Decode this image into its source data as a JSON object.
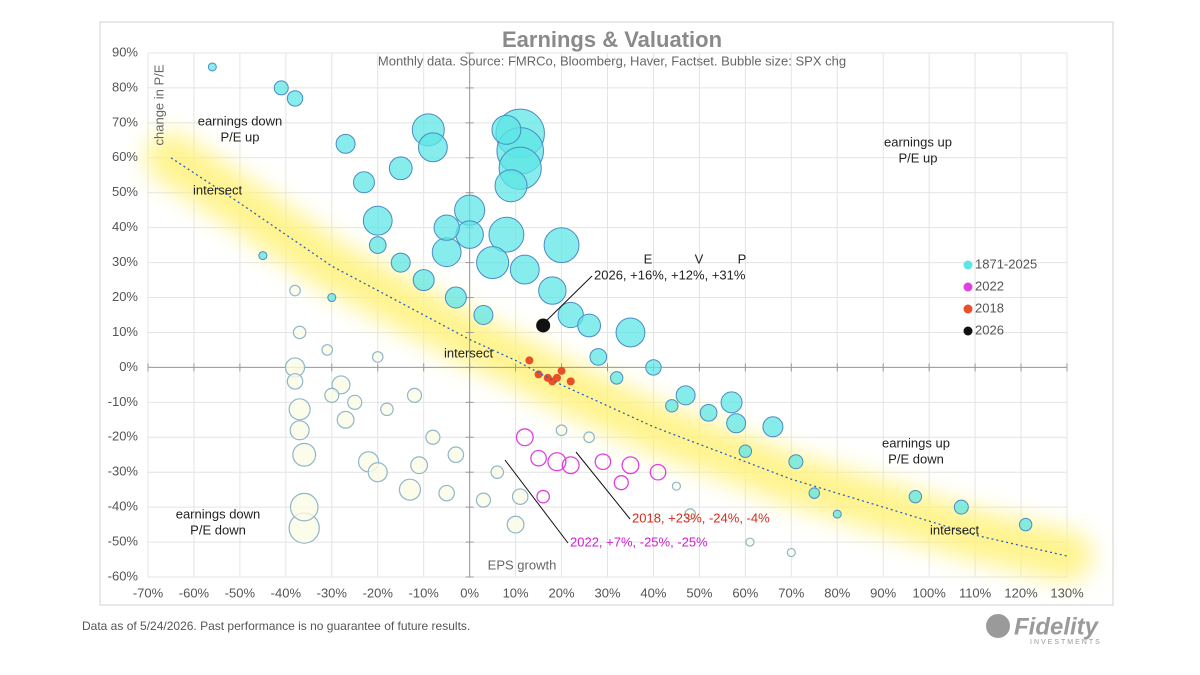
{
  "chart_data": {
    "type": "scatter",
    "title": "Earnings & Valuation",
    "subtitle": "Monthly data.  Source: FMRCo, Bloomberg, Haver, Factset.  Bubble size: SPX chg",
    "y_label": "change in P/E",
    "x_label": "EPS growth",
    "xlim": [
      -70,
      130
    ],
    "ylim": [
      -60,
      90
    ],
    "grid": true,
    "legend": "right",
    "xticks": [
      {
        "value": -70,
        "label": "-70%"
      },
      {
        "value": -60,
        "label": "-60%"
      },
      {
        "value": -50,
        "label": "-50%"
      },
      {
        "value": -40,
        "label": "-40%"
      },
      {
        "value": -30,
        "label": "-30%"
      },
      {
        "value": -20,
        "label": "-20%"
      },
      {
        "value": -10,
        "label": "-10%"
      },
      {
        "value": 0,
        "label": "0%"
      },
      {
        "value": 10,
        "label": "10%"
      },
      {
        "value": 20,
        "label": "20%"
      },
      {
        "value": 30,
        "label": "30%"
      },
      {
        "value": 40,
        "label": "40%"
      },
      {
        "value": 50,
        "label": "50%"
      },
      {
        "value": 60,
        "label": "60%"
      },
      {
        "value": 70,
        "label": "70%"
      },
      {
        "value": 80,
        "label": "80%"
      },
      {
        "value": 90,
        "label": "90%"
      },
      {
        "value": 100,
        "label": "100%"
      },
      {
        "value": 110,
        "label": "110%"
      },
      {
        "value": 120,
        "label": "120%"
      },
      {
        "value": 130,
        "label": "130%"
      }
    ],
    "yticks": [
      {
        "value": -60,
        "label": "-60%"
      },
      {
        "value": -50,
        "label": "-50%"
      },
      {
        "value": -40,
        "label": "-40%"
      },
      {
        "value": -30,
        "label": "-30%"
      },
      {
        "value": -20,
        "label": "-20%"
      },
      {
        "value": -10,
        "label": "-10%"
      },
      {
        "value": 0,
        "label": "0%"
      },
      {
        "value": 10,
        "label": "10%"
      },
      {
        "value": 20,
        "label": "20%"
      },
      {
        "value": 30,
        "label": "30%"
      },
      {
        "value": 40,
        "label": "40%"
      },
      {
        "value": 50,
        "label": "50%"
      },
      {
        "value": 60,
        "label": "60%"
      },
      {
        "value": 70,
        "label": "70%"
      },
      {
        "value": 80,
        "label": "80%"
      },
      {
        "value": 90,
        "label": "90%"
      }
    ],
    "curve": {
      "x": [
        -65,
        -50,
        -40,
        -30,
        -20,
        -10,
        0,
        10,
        20,
        30,
        40,
        50,
        60,
        70,
        80,
        90,
        100,
        110,
        120,
        130
      ],
      "values": [
        60,
        47,
        38,
        29,
        22,
        15,
        8,
        2,
        -5,
        -11,
        -17,
        -22,
        -27,
        -32,
        -36,
        -40,
        -44,
        -48,
        -51,
        -54
      ]
    },
    "series": [
      {
        "name": "1871-2025",
        "color": "#5ee6e6",
        "x": [
          11,
          11,
          11,
          8,
          9,
          -9,
          -8,
          20,
          35,
          0,
          0,
          -5,
          -20,
          -23,
          -27,
          -38,
          -41,
          -15,
          -5,
          5,
          8,
          12,
          18,
          22,
          26,
          -10,
          -15,
          -20,
          -3,
          3,
          28,
          40,
          47,
          52,
          57,
          58,
          66,
          71,
          75,
          97,
          107,
          121,
          80,
          60,
          44,
          32,
          -56,
          -45,
          -30,
          -38,
          -38,
          -37,
          -37,
          -36,
          -36,
          -36,
          -37,
          -38,
          -28,
          -27,
          -22,
          -20,
          -13,
          -11,
          -5,
          -8,
          -3,
          -12,
          -18,
          -25,
          -30,
          -31,
          -20,
          10,
          11,
          6,
          3,
          61,
          70,
          48,
          45,
          20,
          26
        ],
        "values": [
          67,
          62,
          57,
          68,
          52,
          68,
          63,
          35,
          10,
          45,
          38,
          40,
          42,
          53,
          64,
          77,
          80,
          57,
          33,
          30,
          38,
          28,
          22,
          15,
          12,
          25,
          30,
          35,
          20,
          15,
          3,
          0,
          -8,
          -13,
          -10,
          -16,
          -17,
          -27,
          -36,
          -37,
          -40,
          -45,
          -42,
          -24,
          -11,
          -3,
          86,
          32,
          20,
          -4,
          0,
          -12,
          -18,
          -25,
          -40,
          -46,
          10,
          22,
          -5,
          -15,
          -27,
          -30,
          -35,
          -28,
          -36,
          -20,
          -25,
          -8,
          -12,
          -10,
          -8,
          5,
          3,
          -45,
          -37,
          -30,
          -38,
          -50,
          -53,
          -42,
          -34,
          -18,
          -20
        ],
        "sizes": [
          60,
          55,
          45,
          20,
          25,
          25,
          20,
          30,
          20,
          22,
          18,
          15,
          20,
          10,
          8,
          5,
          4,
          12,
          20,
          25,
          30,
          20,
          18,
          15,
          12,
          10,
          8,
          6,
          10,
          8,
          6,
          5,
          8,
          6,
          10,
          8,
          9,
          4,
          2,
          3,
          4,
          3,
          1,
          3,
          3,
          3,
          1,
          1,
          1,
          -5,
          -8,
          -10,
          -8,
          -12,
          -18,
          -22,
          -3,
          -2,
          -7,
          -6,
          -9,
          -8,
          -10,
          -6,
          -5,
          -4,
          -5,
          -4,
          -3,
          -4,
          -4,
          -2,
          -2,
          -6,
          -5,
          -3,
          -4,
          -1,
          -1,
          -2,
          -1,
          -2,
          -2
        ]
      },
      {
        "name": "2022",
        "color": "#e040e0",
        "x": [
          12,
          15,
          19,
          22,
          29,
          35,
          41,
          33,
          16
        ],
        "values": [
          -20,
          -26,
          -27,
          -28,
          -27,
          -28,
          -30,
          -33,
          -37
        ],
        "sizes": [
          -6,
          -5,
          -7,
          -6,
          -5,
          -6,
          -5,
          -4,
          -3
        ]
      },
      {
        "name": "2018",
        "color": "#e8502a",
        "x": [
          13,
          15,
          17,
          18,
          19,
          20,
          22
        ],
        "values": [
          2,
          -2,
          -3,
          -4,
          -3,
          -1,
          -4
        ],
        "sizes": [
          -1,
          -1,
          -1,
          -1,
          -1,
          -1,
          -1
        ]
      },
      {
        "name": "2026",
        "color": "#111111",
        "x": [
          16
        ],
        "values": [
          12
        ],
        "sizes": [
          31
        ]
      }
    ],
    "annotations": {
      "top_left": [
        "earnings down",
        "P/E up"
      ],
      "top_right": [
        "earnings up",
        "P/E up"
      ],
      "bottom_left": [
        "earnings down",
        "P/E down"
      ],
      "bottom_right": [
        "earnings up",
        "P/E down"
      ],
      "intersect": "intersect",
      "evp_header": [
        "E",
        "V",
        "P"
      ],
      "label_2026": "2026, +16%, +12%, +31%",
      "label_2018": "2018, +23%, -24%, -4%",
      "label_2022": "2022, +7%, -25%, -25%"
    },
    "footer": "Data as of 5/24/2026. Past performance is no guarantee of future results.",
    "logo": "Fidelity",
    "logo_sub": "INVESTMENTS"
  }
}
